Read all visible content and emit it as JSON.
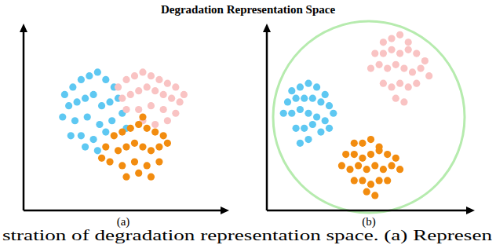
{
  "title": "Degradation Representation Space",
  "caption": "stration of degradation representation space. (a) Represen",
  "chart_data": [
    {
      "type": "scatter",
      "xlabel": "(a)",
      "xlim": [
        0,
        100
      ],
      "ylim": [
        0,
        100
      ],
      "tick_labels": false,
      "grid": false,
      "series": [
        {
          "color": "#5ec8f2",
          "x": [
            20,
            24,
            28,
            32,
            36,
            40,
            44,
            22,
            26,
            30,
            34,
            38,
            42,
            46,
            19,
            25,
            31,
            37,
            43,
            28,
            34,
            40,
            23,
            30,
            36,
            48,
            50
          ],
          "values": [
            62,
            66,
            70,
            72,
            74,
            70,
            66,
            56,
            58,
            60,
            62,
            56,
            58,
            60,
            50,
            48,
            50,
            46,
            48,
            40,
            38,
            42,
            40,
            34,
            32,
            52,
            44
          ]
        },
        {
          "color": "#f9c3c3",
          "x": [
            46,
            50,
            54,
            58,
            62,
            66,
            70,
            74,
            48,
            52,
            56,
            60,
            64,
            68,
            72,
            76,
            50,
            56,
            62,
            68,
            74,
            58,
            64,
            70,
            78
          ],
          "values": [
            66,
            70,
            72,
            74,
            72,
            70,
            68,
            66,
            60,
            62,
            64,
            66,
            64,
            62,
            60,
            58,
            54,
            54,
            56,
            54,
            52,
            48,
            46,
            48,
            62
          ]
        },
        {
          "color": "#f28c0f",
          "x": [
            44,
            48,
            52,
            56,
            60,
            64,
            68,
            40,
            46,
            50,
            54,
            58,
            62,
            66,
            70,
            42,
            48,
            54,
            60,
            66,
            50,
            56,
            62,
            58,
            38
          ],
          "values": [
            40,
            42,
            44,
            46,
            44,
            42,
            40,
            34,
            32,
            34,
            36,
            34,
            32,
            34,
            36,
            26,
            24,
            26,
            24,
            26,
            18,
            20,
            18,
            50,
            28
          ]
        }
      ]
    },
    {
      "type": "scatter",
      "xlabel": "(b)",
      "xlim": [
        0,
        100
      ],
      "ylim": [
        0,
        100
      ],
      "tick_labels": false,
      "grid": false,
      "series": [
        {
          "color": "#5ec8f2",
          "x": [
            12,
            16,
            20,
            24,
            28,
            10,
            14,
            18,
            22,
            26,
            30,
            32,
            8,
            12,
            16,
            20,
            24,
            28,
            14,
            18,
            22,
            26,
            20,
            16,
            30
          ],
          "values": [
            64,
            66,
            68,
            66,
            62,
            58,
            60,
            60,
            60,
            58,
            56,
            52,
            52,
            52,
            54,
            52,
            50,
            48,
            44,
            44,
            46,
            42,
            38,
            36,
            44
          ]
        },
        {
          "color": "#f9c3c3",
          "x": [
            56,
            60,
            64,
            68,
            52,
            56,
            60,
            64,
            68,
            72,
            76,
            50,
            54,
            58,
            62,
            66,
            70,
            74,
            78,
            56,
            60,
            64,
            68,
            72,
            62,
            66
          ],
          "values": [
            90,
            92,
            94,
            90,
            84,
            84,
            86,
            84,
            86,
            84,
            80,
            76,
            78,
            76,
            78,
            76,
            74,
            76,
            72,
            68,
            66,
            68,
            66,
            68,
            60,
            58
          ]
        },
        {
          "color": "#f28c0f",
          "x": [
            42,
            46,
            50,
            54,
            38,
            42,
            46,
            50,
            54,
            58,
            62,
            36,
            40,
            44,
            48,
            52,
            56,
            60,
            64,
            42,
            46,
            50,
            54,
            58,
            48,
            52
          ],
          "values": [
            36,
            36,
            38,
            34,
            30,
            30,
            28,
            30,
            32,
            30,
            28,
            24,
            22,
            24,
            22,
            24,
            22,
            24,
            22,
            16,
            16,
            14,
            16,
            16,
            10,
            8
          ]
        }
      ]
    }
  ]
}
